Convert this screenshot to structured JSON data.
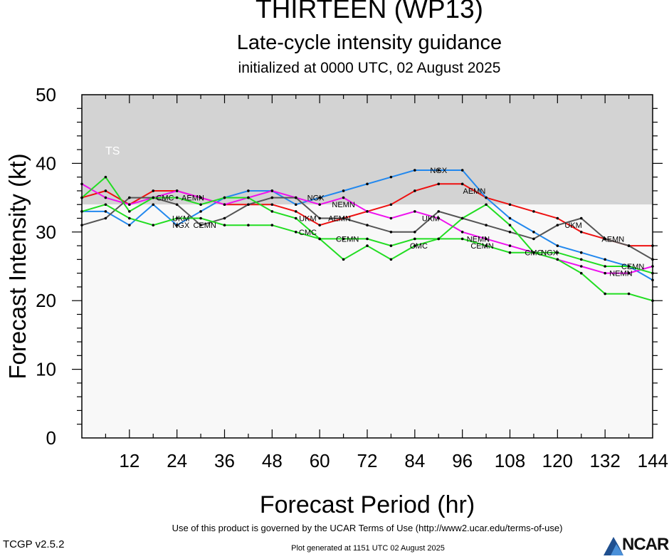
{
  "header": {
    "title": "THIRTEEN (WP13)",
    "subtitle": "Late-cycle intensity guidance",
    "init": "initialized at 0000 UTC, 02 August 2025"
  },
  "footer": {
    "terms": "Use of this product is governed by the UCAR Terms of Use (http://www2.ucar.edu/terms-of-use)",
    "generated": "Plot generated at 1151 UTC   02 August 2025",
    "version": "TCGP v2.5.2",
    "logo": "NCAR"
  },
  "chart_data": {
    "type": "line",
    "xlabel": "Forecast Period (hr)",
    "ylabel": "Forecast Intensity (kt)",
    "xlim": [
      0,
      144
    ],
    "ylim": [
      0,
      50
    ],
    "xticks": [
      12,
      24,
      36,
      48,
      60,
      72,
      84,
      96,
      108,
      120,
      132,
      144
    ],
    "yticks": [
      0,
      10,
      20,
      30,
      40,
      50
    ],
    "bands": [
      {
        "label": "TS",
        "from": 34,
        "to": 50,
        "color": "#d3d3d3"
      },
      {
        "label": "",
        "from": 0,
        "to": 34,
        "color": "#f8f8f8"
      }
    ],
    "grid": false,
    "legend": "none",
    "series": [
      {
        "name": "AEMN",
        "color": "#ee1111",
        "x": [
          0,
          6,
          12,
          18,
          24,
          30,
          36,
          42,
          48,
          54,
          60,
          66,
          72,
          78,
          84,
          90,
          96,
          102,
          108,
          114,
          120,
          126,
          132,
          138,
          144
        ],
        "y": [
          35,
          36,
          34,
          36,
          36,
          35,
          34,
          34,
          34,
          33,
          31,
          32,
          33,
          34,
          36,
          37,
          37,
          35,
          34,
          33,
          32,
          30,
          29,
          28,
          28
        ]
      },
      {
        "name": "NGX",
        "color": "#2288ee",
        "x": [
          0,
          6,
          12,
          18,
          24,
          30,
          36,
          42,
          48,
          54,
          60,
          66,
          72,
          78,
          84,
          90,
          96,
          102,
          108,
          114,
          120,
          126,
          132,
          138,
          144
        ],
        "y": [
          33,
          33,
          31,
          34,
          31,
          33,
          35,
          36,
          36,
          34,
          35,
          36,
          37,
          38,
          39,
          39,
          39,
          35,
          32,
          30,
          28,
          27,
          26,
          25,
          23
        ]
      },
      {
        "name": "NEMN",
        "color": "#ee11ee",
        "x": [
          0,
          6,
          12,
          18,
          24,
          30,
          36,
          42,
          48,
          54,
          60,
          66,
          72,
          78,
          84,
          90,
          96,
          102,
          108,
          114,
          120,
          126,
          132,
          138,
          144
        ],
        "y": [
          37,
          35,
          34,
          35,
          36,
          35,
          34,
          35,
          36,
          35,
          34,
          35,
          33,
          32,
          33,
          32,
          30,
          29,
          28,
          27,
          26,
          25,
          24,
          24,
          25
        ]
      },
      {
        "name": "UKM",
        "color": "#555555",
        "x": [
          0,
          6,
          12,
          18,
          24,
          30,
          36,
          42,
          48,
          54,
          60,
          66,
          72,
          78,
          84,
          90,
          96,
          102,
          108,
          114,
          120,
          126,
          132,
          138,
          144
        ],
        "y": [
          31,
          32,
          35,
          35,
          34,
          31,
          32,
          34,
          35,
          35,
          32,
          32,
          31,
          30,
          30,
          33,
          32,
          31,
          30,
          29,
          31,
          32,
          29,
          28,
          26
        ]
      },
      {
        "name": "CMC",
        "color": "#22dd22",
        "x": [
          0,
          6,
          12,
          18,
          24,
          30,
          36,
          42,
          48,
          54,
          60,
          66,
          72,
          78,
          84,
          90,
          96,
          102,
          108,
          114,
          120,
          126,
          132,
          138,
          144
        ],
        "y": [
          35,
          38,
          33,
          35,
          35,
          34,
          35,
          35,
          33,
          32,
          29,
          26,
          28,
          26,
          28,
          29,
          32,
          34,
          31,
          27,
          26,
          24,
          21,
          21,
          20
        ]
      },
      {
        "name": "CEMN",
        "color": "#22dd22",
        "x": [
          0,
          6,
          12,
          18,
          24,
          30,
          36,
          42,
          48,
          54,
          60,
          66,
          72,
          78,
          84,
          90,
          96,
          102,
          108,
          114,
          120,
          126,
          132,
          138,
          144
        ],
        "y": [
          33,
          34,
          32,
          31,
          32,
          32,
          31,
          31,
          31,
          30,
          29,
          29,
          29,
          28,
          29,
          29,
          29,
          28,
          27,
          27,
          27,
          26,
          25,
          25,
          24
        ]
      }
    ],
    "labels": [
      {
        "text": "AEMN",
        "x": 28,
        "y": 35
      },
      {
        "text": "UKM",
        "x": 25,
        "y": 32
      },
      {
        "text": "CMC",
        "x": 21,
        "y": 35
      },
      {
        "text": "NGX",
        "x": 25,
        "y": 31
      },
      {
        "text": "CEMN",
        "x": 31,
        "y": 31
      },
      {
        "text": "NGX",
        "x": 59,
        "y": 35
      },
      {
        "text": "NEMN",
        "x": 66,
        "y": 34
      },
      {
        "text": "UKM",
        "x": 57,
        "y": 32
      },
      {
        "text": "AEMN",
        "x": 65,
        "y": 32
      },
      {
        "text": "CMC",
        "x": 57,
        "y": 30
      },
      {
        "text": "CEMN",
        "x": 67,
        "y": 29
      },
      {
        "text": "NGX",
        "x": 90,
        "y": 39
      },
      {
        "text": "AEMN",
        "x": 99,
        "y": 36
      },
      {
        "text": "UKM",
        "x": 88,
        "y": 32
      },
      {
        "text": "CMC",
        "x": 85,
        "y": 28
      },
      {
        "text": "NEMN",
        "x": 100,
        "y": 29
      },
      {
        "text": "CEMN",
        "x": 101,
        "y": 28
      },
      {
        "text": "CMC",
        "x": 114,
        "y": 27
      },
      {
        "text": "NGX",
        "x": 118,
        "y": 27
      },
      {
        "text": "UKM",
        "x": 124,
        "y": 31
      },
      {
        "text": "AEMN",
        "x": 134,
        "y": 29
      },
      {
        "text": "CEMN",
        "x": 139,
        "y": 25
      },
      {
        "text": "NEMN",
        "x": 136,
        "y": 24
      }
    ]
  }
}
